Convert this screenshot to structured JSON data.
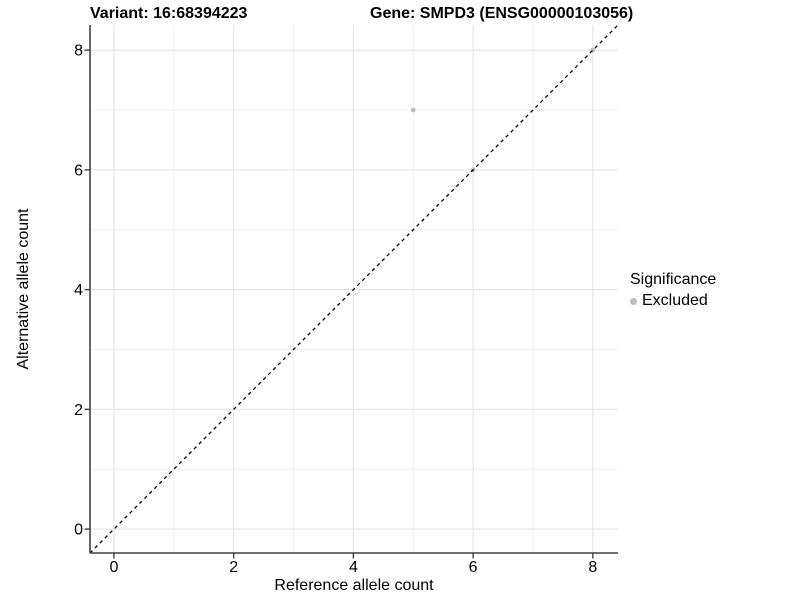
{
  "title": {
    "variant": "Variant: 16:68394223",
    "gene": "Gene: SMPD3 (ENSG00000103056)"
  },
  "legend": {
    "title": "Significance",
    "items": [
      {
        "label": "Excluded",
        "color": "#bdbdbd"
      }
    ]
  },
  "chart_data": {
    "type": "scatter",
    "title": "Variant: 16:68394223 | Gene: SMPD3 (ENSG00000103056)",
    "xlabel": "Reference allele count",
    "ylabel": "Alternative allele count",
    "x_ticks": [
      0,
      2,
      4,
      6,
      8
    ],
    "y_ticks": [
      0,
      2,
      4,
      6,
      8
    ],
    "minor_grid": [
      1,
      3,
      5,
      7
    ],
    "xlim": [
      -0.4,
      8.42
    ],
    "ylim": [
      -0.4,
      8.42
    ],
    "grid": "on",
    "legend_position": "right",
    "series": [
      {
        "name": "Excluded",
        "color": "#bdbdbd",
        "points": [
          [
            5,
            7
          ],
          [
            6,
            6
          ],
          [
            8,
            8
          ]
        ]
      }
    ],
    "reference_line": {
      "equation": "y = x",
      "style": "dashed",
      "color": "#000000"
    }
  },
  "colors": {
    "background": "#ffffff",
    "grid_major": "#e4e4e4",
    "grid_minor": "#f1f1f1",
    "axis_line": "#404040",
    "text": "#000000",
    "excluded_point": "#bdbdbd"
  }
}
